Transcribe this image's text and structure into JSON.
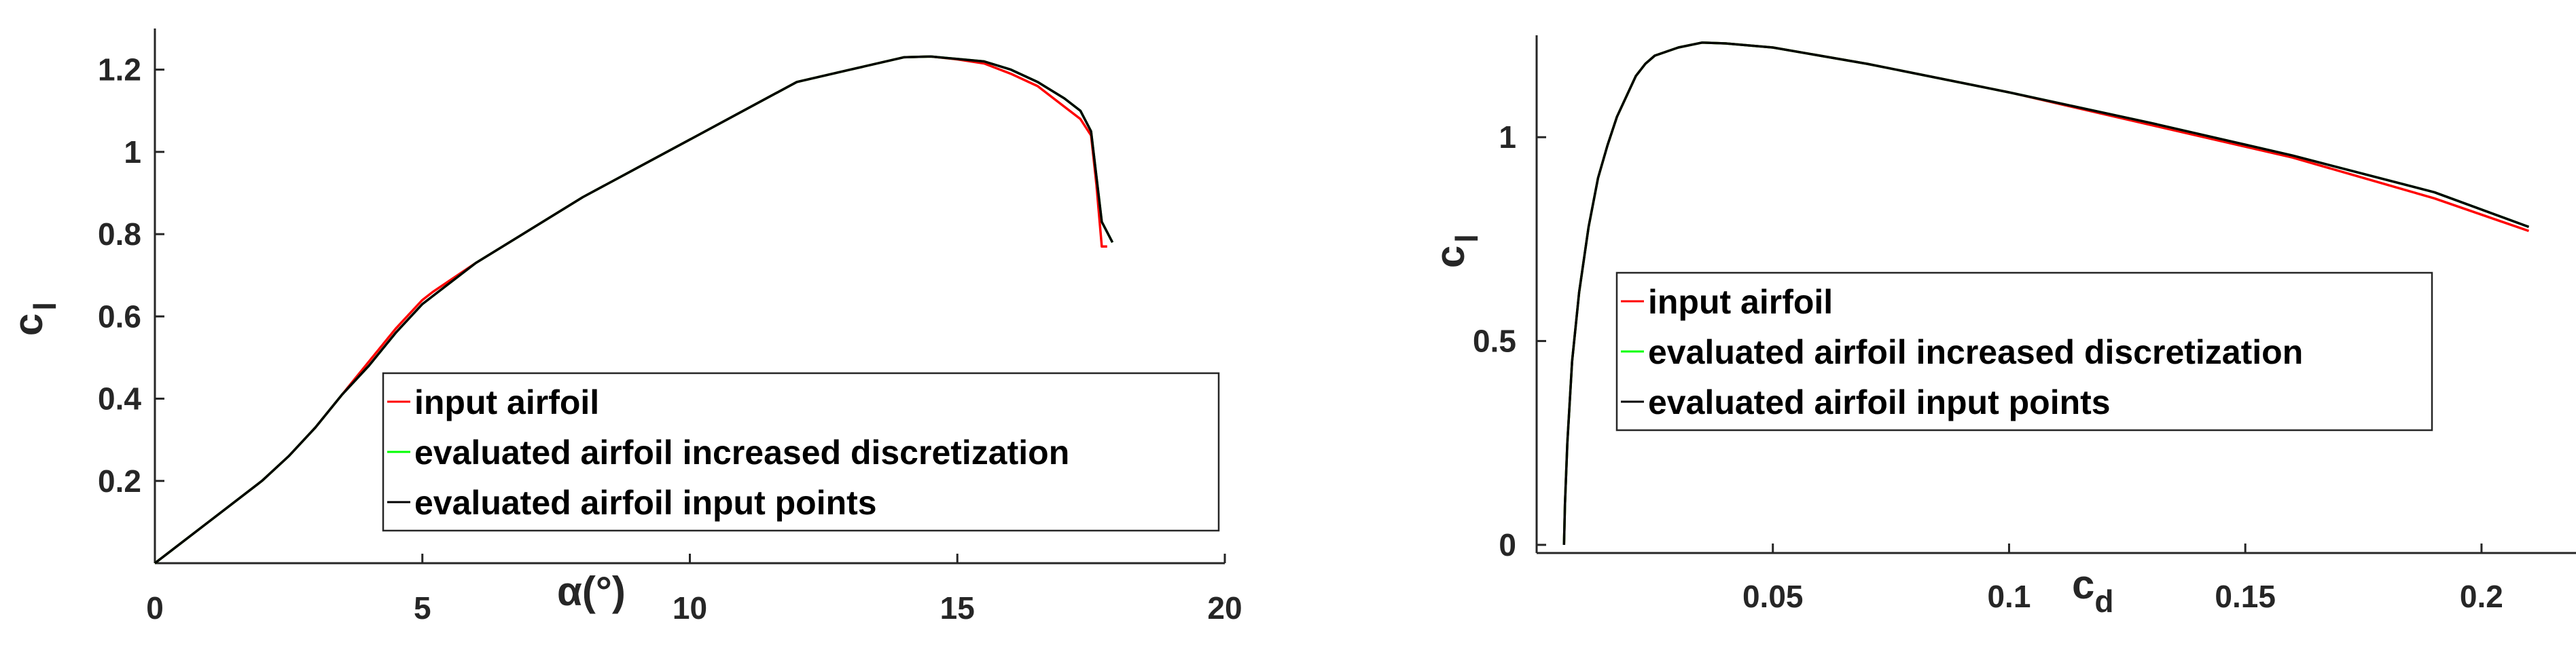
{
  "chart_data": [
    {
      "type": "line",
      "xlabel": "α(°)",
      "ylabel": "c",
      "ylabel_sub": "l",
      "xlim": [
        0,
        20
      ],
      "ylim": [
        0,
        1.3
      ],
      "xticks": [
        0,
        5,
        10,
        15,
        20
      ],
      "xtick_labels": [
        "0",
        "5",
        "10",
        "15",
        "20"
      ],
      "yticks": [
        0.2,
        0.4,
        0.6,
        0.8,
        1.0,
        1.2
      ],
      "ytick_labels": [
        "0.2",
        "0.4",
        "0.6",
        "0.8",
        "1",
        "1.2"
      ],
      "grid": false,
      "legend_position": "bottom-right",
      "series": [
        {
          "name": "input airfoil",
          "color": "#ff0000",
          "x": [
            0,
            1,
            2,
            2.5,
            3,
            3.5,
            4,
            4.5,
            5,
            5.2,
            6,
            7,
            8,
            9,
            10,
            11,
            12,
            13,
            14,
            14.5,
            15,
            15.5,
            16,
            16.5,
            17,
            17.3,
            17.5,
            17.6,
            17.7,
            17.8
          ],
          "y": [
            0,
            0.1,
            0.2,
            0.26,
            0.33,
            0.41,
            0.49,
            0.57,
            0.64,
            0.66,
            0.73,
            0.81,
            0.89,
            0.96,
            1.03,
            1.1,
            1.17,
            1.2,
            1.23,
            1.232,
            1.225,
            1.215,
            1.19,
            1.16,
            1.11,
            1.08,
            1.04,
            0.92,
            0.77,
            0.77
          ]
        },
        {
          "name": "evaluated airfoil increased discretization",
          "color": "#00ff00",
          "x": [
            0,
            1,
            2,
            2.5,
            3,
            3.5,
            4,
            4.5,
            5,
            5.2,
            6,
            7,
            8,
            9,
            10,
            11,
            12,
            13,
            14,
            14.5,
            15,
            15.5,
            16,
            16.5,
            17,
            17.3,
            17.5,
            17.6,
            17.7,
            17.9
          ],
          "y": [
            0,
            0.1,
            0.2,
            0.26,
            0.33,
            0.41,
            0.48,
            0.56,
            0.63,
            0.65,
            0.73,
            0.81,
            0.89,
            0.96,
            1.03,
            1.1,
            1.17,
            1.2,
            1.23,
            1.232,
            1.226,
            1.22,
            1.2,
            1.17,
            1.13,
            1.1,
            1.05,
            0.94,
            0.83,
            0.78
          ]
        },
        {
          "name": "evaluated airfoil input points",
          "color": "#000000",
          "x": [
            0,
            1,
            2,
            2.5,
            3,
            3.5,
            4,
            4.5,
            5,
            5.2,
            6,
            7,
            8,
            9,
            10,
            11,
            12,
            13,
            14,
            14.5,
            15,
            15.5,
            16,
            16.5,
            17,
            17.3,
            17.5,
            17.6,
            17.7,
            17.9
          ],
          "y": [
            0,
            0.1,
            0.2,
            0.26,
            0.33,
            0.41,
            0.48,
            0.56,
            0.63,
            0.65,
            0.73,
            0.81,
            0.89,
            0.96,
            1.03,
            1.1,
            1.17,
            1.2,
            1.23,
            1.232,
            1.226,
            1.22,
            1.2,
            1.17,
            1.13,
            1.1,
            1.05,
            0.94,
            0.83,
            0.78
          ]
        }
      ]
    },
    {
      "type": "line",
      "xlabel": "c",
      "xlabel_sub": "d",
      "ylabel": "c",
      "ylabel_sub": "l",
      "xlim": [
        0,
        0.22
      ],
      "ylim": [
        -0.02,
        1.25
      ],
      "xticks": [
        0.05,
        0.1,
        0.15,
        0.2
      ],
      "xtick_labels": [
        "0.05",
        "0.1",
        "0.15",
        "0.2"
      ],
      "yticks": [
        0,
        0.5,
        1.0
      ],
      "ytick_labels": [
        "0",
        "0.5",
        "1"
      ],
      "grid": false,
      "legend_position": "center-left",
      "series": [
        {
          "name": "input airfoil",
          "color": "#ff0000",
          "x": [
            0.0058,
            0.006,
            0.0065,
            0.0075,
            0.009,
            0.011,
            0.013,
            0.015,
            0.017,
            0.019,
            0.021,
            0.023,
            0.025,
            0.03,
            0.035,
            0.04,
            0.05,
            0.07,
            0.1,
            0.13,
            0.16,
            0.19,
            0.21
          ],
          "y": [
            0,
            0.1,
            0.25,
            0.45,
            0.62,
            0.78,
            0.9,
            0.98,
            1.05,
            1.1,
            1.15,
            1.18,
            1.2,
            1.22,
            1.232,
            1.23,
            1.22,
            1.18,
            1.11,
            1.03,
            0.95,
            0.85,
            0.77
          ]
        },
        {
          "name": "evaluated airfoil increased discretization",
          "color": "#00ff00",
          "x": [
            0.0058,
            0.006,
            0.0065,
            0.0075,
            0.009,
            0.011,
            0.013,
            0.015,
            0.017,
            0.019,
            0.021,
            0.023,
            0.025,
            0.03,
            0.035,
            0.04,
            0.05,
            0.07,
            0.1,
            0.13,
            0.16,
            0.19,
            0.21
          ],
          "y": [
            0,
            0.1,
            0.25,
            0.45,
            0.62,
            0.78,
            0.9,
            0.98,
            1.05,
            1.1,
            1.15,
            1.18,
            1.2,
            1.22,
            1.232,
            1.23,
            1.22,
            1.18,
            1.11,
            1.035,
            0.955,
            0.865,
            0.78
          ]
        },
        {
          "name": "evaluated airfoil input points",
          "color": "#000000",
          "x": [
            0.0058,
            0.006,
            0.0065,
            0.0075,
            0.009,
            0.011,
            0.013,
            0.015,
            0.017,
            0.019,
            0.021,
            0.023,
            0.025,
            0.03,
            0.035,
            0.04,
            0.05,
            0.07,
            0.1,
            0.13,
            0.16,
            0.19,
            0.21
          ],
          "y": [
            0,
            0.1,
            0.25,
            0.45,
            0.62,
            0.78,
            0.9,
            0.98,
            1.05,
            1.1,
            1.15,
            1.18,
            1.2,
            1.22,
            1.232,
            1.23,
            1.22,
            1.18,
            1.11,
            1.035,
            0.955,
            0.865,
            0.78
          ]
        }
      ]
    }
  ]
}
